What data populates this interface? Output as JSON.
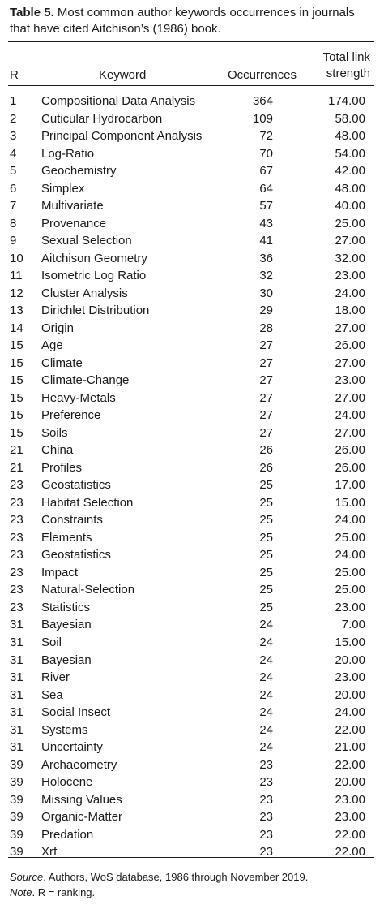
{
  "caption": {
    "label": "Table 5.",
    "text": "Most common author keywords occurrences in journals that have cited Aitchison’s (1986) book."
  },
  "headers": {
    "rank": "R",
    "keyword": "Keyword",
    "occurrences": "Occurrences",
    "total_link_line1": "Total link",
    "total_link_line2": "strength"
  },
  "rows": [
    [
      "1",
      "Compositional Data Analysis",
      "364",
      "174.00"
    ],
    [
      "2",
      "Cuticular Hydrocarbon",
      "109",
      "58.00"
    ],
    [
      "3",
      "Principal Component Analysis",
      "72",
      "48.00"
    ],
    [
      "4",
      "Log-Ratio",
      "70",
      "54.00"
    ],
    [
      "5",
      "Geochemistry",
      "67",
      "42.00"
    ],
    [
      "6",
      "Simplex",
      "64",
      "48.00"
    ],
    [
      "7",
      "Multivariate",
      "57",
      "40.00"
    ],
    [
      "8",
      "Provenance",
      "43",
      "25.00"
    ],
    [
      "9",
      "Sexual Selection",
      "41",
      "27.00"
    ],
    [
      "10",
      "Aitchison Geometry",
      "36",
      "32.00"
    ],
    [
      "11",
      "Isometric Log Ratio",
      "32",
      "23.00"
    ],
    [
      "12",
      "Cluster Analysis",
      "30",
      "24.00"
    ],
    [
      "13",
      "Dirichlet Distribution",
      "29",
      "18.00"
    ],
    [
      "14",
      "Origin",
      "28",
      "27.00"
    ],
    [
      "15",
      "Age",
      "27",
      "26.00"
    ],
    [
      "15",
      "Climate",
      "27",
      "27.00"
    ],
    [
      "15",
      "Climate-Change",
      "27",
      "23.00"
    ],
    [
      "15",
      "Heavy-Metals",
      "27",
      "27.00"
    ],
    [
      "15",
      "Preference",
      "27",
      "24.00"
    ],
    [
      "15",
      "Soils",
      "27",
      "27.00"
    ],
    [
      "21",
      "China",
      "26",
      "26.00"
    ],
    [
      "21",
      "Profiles",
      "26",
      "26.00"
    ],
    [
      "23",
      "Geostatistics",
      "25",
      "17.00"
    ],
    [
      "23",
      "Habitat Selection",
      "25",
      "15.00"
    ],
    [
      "23",
      "Constraints",
      "25",
      "24.00"
    ],
    [
      "23",
      "Elements",
      "25",
      "25.00"
    ],
    [
      "23",
      "Geostatistics",
      "25",
      "24.00"
    ],
    [
      "23",
      "Impact",
      "25",
      "25.00"
    ],
    [
      "23",
      "Natural-Selection",
      "25",
      "25.00"
    ],
    [
      "23",
      "Statistics",
      "25",
      "23.00"
    ],
    [
      "31",
      "Bayesian",
      "24",
      "7.00"
    ],
    [
      "31",
      "Soil",
      "24",
      "15.00"
    ],
    [
      "31",
      "Bayesian",
      "24",
      "20.00"
    ],
    [
      "31",
      "River",
      "24",
      "23.00"
    ],
    [
      "31",
      "Sea",
      "24",
      "20.00"
    ],
    [
      "31",
      "Social Insect",
      "24",
      "24.00"
    ],
    [
      "31",
      "Systems",
      "24",
      "22.00"
    ],
    [
      "31",
      "Uncertainty",
      "24",
      "21.00"
    ],
    [
      "39",
      "Archaeometry",
      "23",
      "22.00"
    ],
    [
      "39",
      "Holocene",
      "23",
      "20.00"
    ],
    [
      "39",
      "Missing Values",
      "23",
      "23.00"
    ],
    [
      "39",
      "Organic-Matter",
      "23",
      "23.00"
    ],
    [
      "39",
      "Predation",
      "23",
      "22.00"
    ],
    [
      "39",
      "Xrf",
      "23",
      "22.00"
    ]
  ],
  "notes": {
    "source_label": "Source",
    "source_text": ". Authors, WoS database, 1986 through November 2019.",
    "note_label": "Note",
    "note_text": ". R = ranking."
  }
}
